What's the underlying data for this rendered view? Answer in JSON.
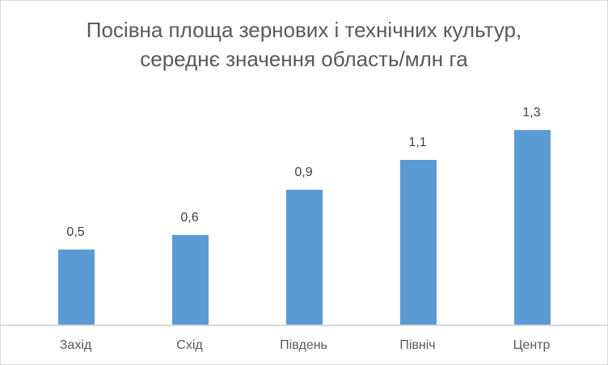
{
  "chart_data": {
    "type": "bar",
    "title": "Посівна площа зернових і технічних культур, середнє значення область/млн га",
    "title_lines": [
      "Посівна площа зернових і технічних культур,",
      "середнє значення область/млн га"
    ],
    "categories": [
      "Захід",
      "Схід",
      "Південь",
      "Північ",
      "Центр"
    ],
    "values": [
      0.5,
      0.6,
      0.9,
      1.1,
      1.3
    ],
    "value_labels": [
      "0,5",
      "0,6",
      "0,9",
      "1,1",
      "1,3"
    ],
    "xlabel": "",
    "ylabel": "",
    "ylim": [
      0,
      1.3
    ],
    "grid": false,
    "legend": null,
    "bar_color": "#5b9bd5"
  }
}
